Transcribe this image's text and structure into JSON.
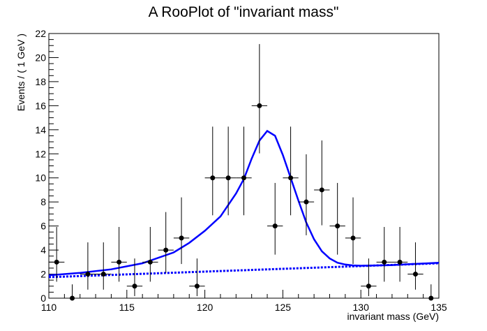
{
  "chart_data": {
    "type": "scatter",
    "title": "A RooPlot of \"invariant mass\"",
    "xlabel": "invariant mass (GeV)",
    "ylabel": "Events / ( 1 GeV )",
    "xlim": [
      110,
      135
    ],
    "ylim": [
      0,
      22
    ],
    "x_ticks": [
      110,
      115,
      120,
      125,
      130,
      135
    ],
    "y_ticks": [
      0,
      2,
      4,
      6,
      8,
      10,
      12,
      14,
      16,
      18,
      20,
      22
    ],
    "grid": false,
    "data_points": {
      "x": [
        110.5,
        111.5,
        112.5,
        113.5,
        114.5,
        115.5,
        116.5,
        117.5,
        118.5,
        119.5,
        120.5,
        121.5,
        122.5,
        123.5,
        124.5,
        125.5,
        126.5,
        127.5,
        128.5,
        129.5,
        130.5,
        131.5,
        132.5,
        133.5,
        134.5
      ],
      "y": [
        3,
        0,
        2,
        2,
        3,
        1,
        3,
        4,
        5,
        1,
        10,
        10,
        10,
        16,
        6,
        10,
        8,
        9,
        6,
        5,
        1,
        3,
        3,
        2,
        0
      ],
      "x_error": 0.5,
      "y_error_low": [
        1.63,
        0,
        1.29,
        1.29,
        1.63,
        0.83,
        1.63,
        1.91,
        2.16,
        0.83,
        3.11,
        3.11,
        3.11,
        3.96,
        2.38,
        3.11,
        2.77,
        2.94,
        2.38,
        2.16,
        0.83,
        1.63,
        1.63,
        1.29,
        0
      ],
      "y_error_high": [
        2.92,
        1.15,
        2.64,
        2.64,
        2.92,
        2.3,
        2.92,
        3.16,
        3.38,
        2.3,
        4.26,
        4.26,
        4.26,
        5.12,
        3.58,
        4.26,
        3.96,
        4.11,
        3.58,
        3.38,
        2.3,
        2.92,
        2.92,
        2.64,
        1.15
      ],
      "color": "#000000"
    },
    "curves": [
      {
        "style": "solid",
        "color": "#0000ff",
        "x": [
          110,
          112,
          114,
          116,
          118,
          119,
          120,
          121,
          122,
          122.5,
          123,
          123.5,
          124,
          124.5,
          125,
          125.5,
          126,
          126.5,
          127,
          127.5,
          128,
          128.5,
          129,
          129.5,
          130,
          131,
          132,
          133,
          134,
          135
        ],
        "y": [
          1.9,
          2.1,
          2.4,
          2.9,
          3.8,
          4.6,
          5.6,
          6.8,
          8.7,
          9.9,
          11.6,
          13.1,
          13.9,
          13.5,
          11.9,
          10.0,
          8.1,
          6.3,
          4.9,
          3.9,
          3.3,
          2.95,
          2.8,
          2.72,
          2.7,
          2.72,
          2.75,
          2.82,
          2.88,
          2.95
        ]
      },
      {
        "style": "dashed",
        "color": "#0000ff",
        "x": [
          110,
          135
        ],
        "y": [
          1.75,
          2.9
        ]
      }
    ]
  }
}
